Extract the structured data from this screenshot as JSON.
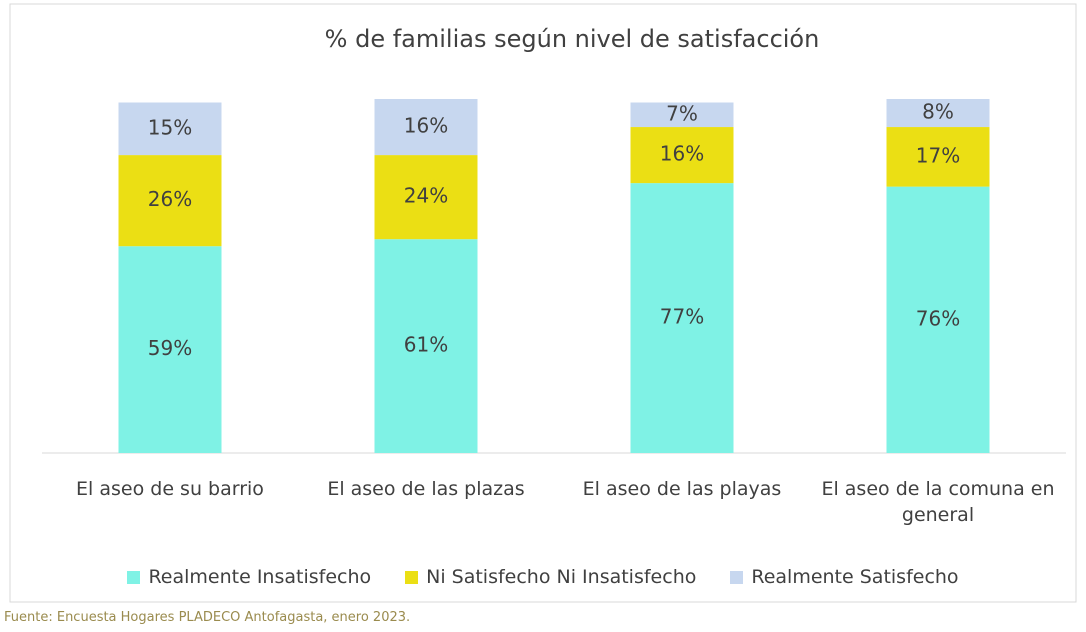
{
  "chart_data": {
    "type": "stacked_bar",
    "title": "% de familias según nivel de satisfacción",
    "categories": [
      "El aseo de su barrio",
      "El aseo de las plazas",
      "El aseo de las playas",
      "El aseo de la comuna en general"
    ],
    "series": [
      {
        "name": "Realmente Insatisfecho",
        "color": "#7ff2e5",
        "values": [
          59,
          61,
          77,
          76
        ],
        "value_labels": [
          "59%",
          "61%",
          "77%",
          "76%"
        ]
      },
      {
        "name": "Ni Satisfecho Ni Insatisfecho",
        "color": "#ebdf14",
        "values": [
          26,
          24,
          16,
          17
        ],
        "value_labels": [
          "26%",
          "24%",
          "16%",
          "17%"
        ]
      },
      {
        "name": "Realmente Satisfecho",
        "color": "#c7d7ef",
        "values": [
          15,
          16,
          7,
          8
        ],
        "value_labels": [
          "15%",
          "16%",
          "7%",
          "8%"
        ]
      }
    ],
    "source": "Fuente: Encuesta Hogares PLADECO Antofagasta, enero 2023."
  }
}
